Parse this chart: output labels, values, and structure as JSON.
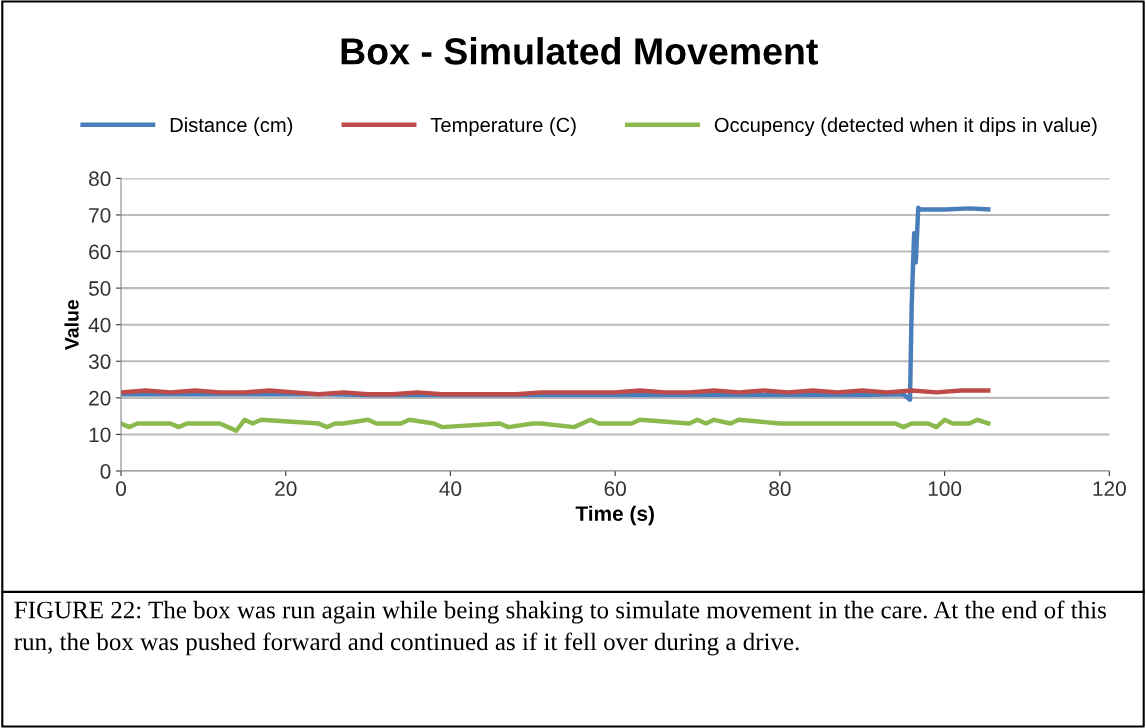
{
  "chart_data": {
    "type": "line",
    "title": "Box - Simulated Movement",
    "xlabel": "Time (s)",
    "ylabel": "Value",
    "xlim": [
      0,
      120
    ],
    "xticks": [
      0,
      20,
      40,
      60,
      80,
      100,
      120
    ],
    "ylim": [
      0,
      80
    ],
    "yticks": [
      0,
      10,
      20,
      30,
      40,
      50,
      60,
      70,
      80
    ],
    "grid": "y",
    "legend": "top",
    "marker": "none",
    "line_style": "solid",
    "series": [
      {
        "name": "Distance (cm)",
        "color": "#4a7ebb",
        "x": [
          0,
          5,
          10,
          15,
          20,
          25,
          30,
          35,
          40,
          45,
          50,
          55,
          60,
          65,
          70,
          75,
          80,
          85,
          90,
          95,
          95.8,
          96.0,
          96.3,
          96.5,
          96.8,
          97,
          100,
          103,
          105.3
        ],
        "values": [
          21,
          21,
          21,
          21,
          21,
          21,
          20.8,
          20.8,
          20.8,
          20.8,
          20.8,
          20.8,
          20.8,
          20.8,
          20.8,
          20.8,
          20.8,
          20.8,
          20.8,
          21,
          19.5,
          45,
          65,
          57,
          72,
          71.5,
          71.5,
          71.8,
          71.5
        ]
      },
      {
        "name": "Temperature (C)",
        "color": "#be4b48",
        "x": [
          0,
          3,
          6,
          9,
          12,
          15,
          18,
          21,
          24,
          27,
          30,
          33,
          36,
          39,
          42,
          45,
          48,
          51,
          54,
          57,
          60,
          63,
          66,
          69,
          72,
          75,
          78,
          81,
          84,
          87,
          90,
          93,
          96,
          99,
          102,
          105.3
        ],
        "values": [
          21.5,
          22,
          21.5,
          22,
          21.5,
          21.5,
          22,
          21.5,
          21,
          21.5,
          21,
          21,
          21.5,
          21,
          21,
          21,
          21,
          21.5,
          21.5,
          21.5,
          21.5,
          22,
          21.5,
          21.5,
          22,
          21.5,
          22,
          21.5,
          22,
          21.5,
          22,
          21.5,
          22,
          21.5,
          22,
          22
        ]
      },
      {
        "name": "Occupency (detected when it dips in value)",
        "color": "#8cb94d",
        "x": [
          0,
          1,
          2,
          6,
          7,
          8,
          9,
          12,
          13,
          14,
          15,
          16,
          17,
          24,
          25,
          26,
          27,
          30,
          31,
          34,
          35,
          38,
          39,
          46,
          47,
          50,
          51,
          55,
          56,
          57,
          58,
          62,
          63,
          69,
          70,
          71,
          72,
          74,
          75,
          80,
          94,
          95,
          96,
          98,
          99,
          100,
          101,
          103,
          104,
          105.3
        ],
        "values": [
          13,
          12,
          13,
          13,
          12,
          13,
          13,
          13,
          12,
          11,
          14,
          13,
          14,
          13,
          12,
          13,
          13,
          14,
          13,
          13,
          14,
          13,
          12,
          13,
          12,
          13,
          13,
          12,
          13,
          14,
          13,
          13,
          14,
          13,
          14,
          13,
          14,
          13,
          14,
          13,
          13,
          12,
          13,
          13,
          12,
          14,
          13,
          13,
          14,
          13
        ]
      }
    ],
    "annotations": [
      "FIGURE 22: The box was run again while being shaking to simulate movement in the care. At the end of this run, the box was pushed forward and continued as if it fell over during a drive."
    ]
  }
}
